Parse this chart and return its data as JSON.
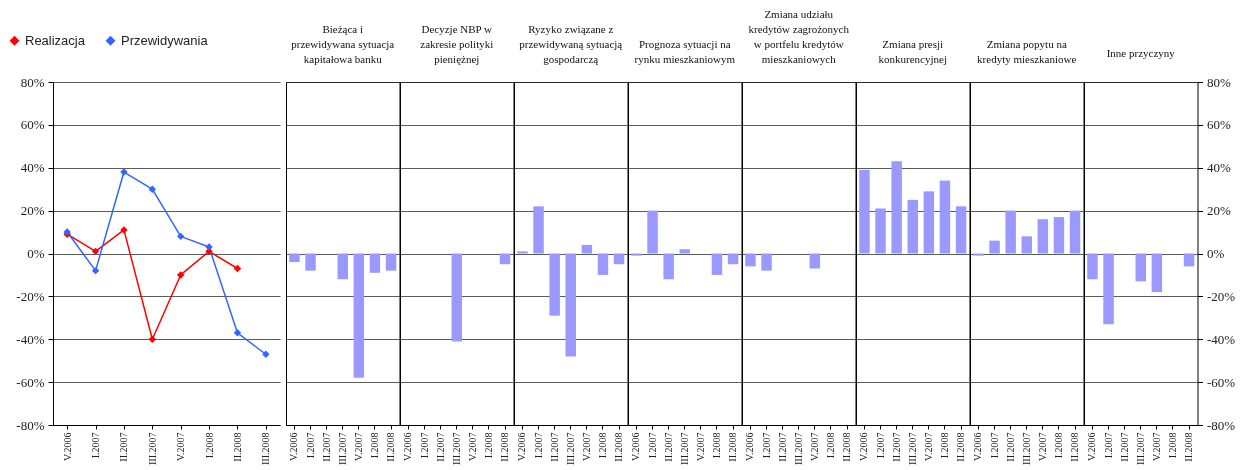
{
  "chart_data": [
    {
      "type": "line",
      "categories": [
        "V.2006",
        "I.2007",
        "II.2007",
        "III.2007",
        "V.2007",
        "I.2008",
        "II.2008",
        "III.2008"
      ],
      "series": [
        {
          "name": "Realizacja",
          "color": "#ff0000",
          "values": [
            9,
            1,
            11,
            -40,
            -10,
            1,
            -7,
            null
          ]
        },
        {
          "name": "Przewidywania",
          "color": "#3366ff",
          "values": [
            10,
            -8,
            38,
            30,
            8,
            3,
            -37,
            -47
          ]
        }
      ],
      "ylim": [
        -80,
        80
      ],
      "yticks": [
        {
          "value": -80,
          "label": "-80%"
        },
        {
          "value": -60,
          "label": "-60%"
        },
        {
          "value": -40,
          "label": "-40%"
        },
        {
          "value": -20,
          "label": "-20%"
        },
        {
          "value": 0,
          "label": "0%"
        },
        {
          "value": 20,
          "label": "20%"
        },
        {
          "value": 40,
          "label": "40%"
        },
        {
          "value": 60,
          "label": "60%"
        },
        {
          "value": 80,
          "label": "80%"
        }
      ],
      "grid": "y",
      "legend": "top left",
      "marker": "diamond"
    },
    {
      "type": "bar",
      "title": "Bieżąca i przewidywana sytuacja kapitałowa banku",
      "categories": [
        "V.2006",
        "I.2007",
        "II.2007",
        "III.2007",
        "V.2007",
        "I.2008",
        "II.2008"
      ],
      "values": [
        -4,
        -8,
        null,
        -12,
        -58,
        -9,
        -8
      ],
      "color": "#9999ff",
      "ylim": [
        -80,
        80
      ],
      "yticks": [
        -80,
        -60,
        -40,
        -20,
        0,
        20,
        40,
        60,
        80
      ],
      "grid": "y",
      "tick_labels": "x"
    },
    {
      "type": "bar",
      "title": "Decyzje NBP w zakresie polityki pieniężnej",
      "categories": [
        "V.2006",
        "I.2007",
        "II.2007",
        "III.2007",
        "V.2007",
        "I.2008",
        "II.2008"
      ],
      "values": [
        null,
        null,
        null,
        -41,
        null,
        null,
        -5
      ],
      "color": "#9999ff",
      "ylim": [
        -80,
        80
      ],
      "yticks": [
        -80,
        -60,
        -40,
        -20,
        0,
        20,
        40,
        60,
        80
      ],
      "grid": "y",
      "tick_labels": "x"
    },
    {
      "type": "bar",
      "title": "Ryzyko związane z przewidywaną sytuacją gospodarczą",
      "categories": [
        "V.2006",
        "I.2007",
        "II.2007",
        "III.2007",
        "V.2007",
        "I.2008",
        "II.2008"
      ],
      "values": [
        1,
        22,
        -29,
        -48,
        4,
        -10,
        -5
      ],
      "color": "#9999ff",
      "ylim": [
        -80,
        80
      ],
      "yticks": [
        -80,
        -60,
        -40,
        -20,
        0,
        20,
        40,
        60,
        80
      ],
      "grid": "y",
      "tick_labels": "x"
    },
    {
      "type": "bar",
      "title": "Prognoza sytuacji na rynku mieszkaniowym",
      "categories": [
        "V.2006",
        "I.2007",
        "II.2007",
        "III.2007",
        "V.2007",
        "I.2008",
        "II.2008"
      ],
      "values": [
        -1,
        20,
        -12,
        2,
        null,
        -10,
        -5
      ],
      "color": "#9999ff",
      "ylim": [
        -80,
        80
      ],
      "yticks": [
        -80,
        -60,
        -40,
        -20,
        0,
        20,
        40,
        60,
        80
      ],
      "grid": "y",
      "tick_labels": "x"
    },
    {
      "type": "bar",
      "title": "Zmiana udziału kredytów zagrożonych w portfelu kredytów mieszkaniowych",
      "categories": [
        "V.2006",
        "I.2007",
        "II.2007",
        "III.2007",
        "V.2007",
        "I.2008",
        "II.2008"
      ],
      "values": [
        -6,
        -8,
        null,
        null,
        -7,
        null,
        null
      ],
      "color": "#9999ff",
      "ylim": [
        -80,
        80
      ],
      "yticks": [
        -80,
        -60,
        -40,
        -20,
        0,
        20,
        40,
        60,
        80
      ],
      "grid": "y",
      "tick_labels": "x"
    },
    {
      "type": "bar",
      "title": "Zmiana presji konkurencyjnej",
      "categories": [
        "V.2006",
        "I.2007",
        "II.2007",
        "III.2007",
        "V.2007",
        "I.2008",
        "II.2008"
      ],
      "values": [
        39,
        21,
        43,
        25,
        29,
        34,
        22
      ],
      "color": "#9999ff",
      "ylim": [
        -80,
        80
      ],
      "yticks": [
        -80,
        -60,
        -40,
        -20,
        0,
        20,
        40,
        60,
        80
      ],
      "grid": "y",
      "tick_labels": "x"
    },
    {
      "type": "bar",
      "title": "Zmiana popytu na kredyty mieszkaniowe",
      "categories": [
        "V.2006",
        "I.2007",
        "II.2007",
        "III.2007",
        "V.2007",
        "I.2008",
        "II.2008"
      ],
      "values": [
        -1,
        6,
        20,
        8,
        16,
        17,
        20
      ],
      "color": "#9999ff",
      "ylim": [
        -80,
        80
      ],
      "yticks": [
        -80,
        -60,
        -40,
        -20,
        0,
        20,
        40,
        60,
        80
      ],
      "grid": "y",
      "tick_labels": "x"
    },
    {
      "type": "bar",
      "title": "Inne przyczyny",
      "categories": [
        "V.2006",
        "I.2007",
        "II.2007",
        "III.2007",
        "V.2007",
        "I.2008",
        "II.2008"
      ],
      "values": [
        -12,
        -33,
        null,
        -13,
        -18,
        null,
        -6
      ],
      "color": "#9999ff",
      "ylim": [
        -80,
        80
      ],
      "yticks": [
        {
          "value": -80,
          "label": "-80%"
        },
        {
          "value": -60,
          "label": "-60%"
        },
        {
          "value": -40,
          "label": "-40%"
        },
        {
          "value": -20,
          "label": "-20%"
        },
        {
          "value": 0,
          "label": "0%"
        },
        {
          "value": 20,
          "label": "20%"
        },
        {
          "value": 40,
          "label": "40%"
        },
        {
          "value": 60,
          "label": "60%"
        },
        {
          "value": 80,
          "label": "80%"
        }
      ],
      "grid": "y"
    }
  ]
}
